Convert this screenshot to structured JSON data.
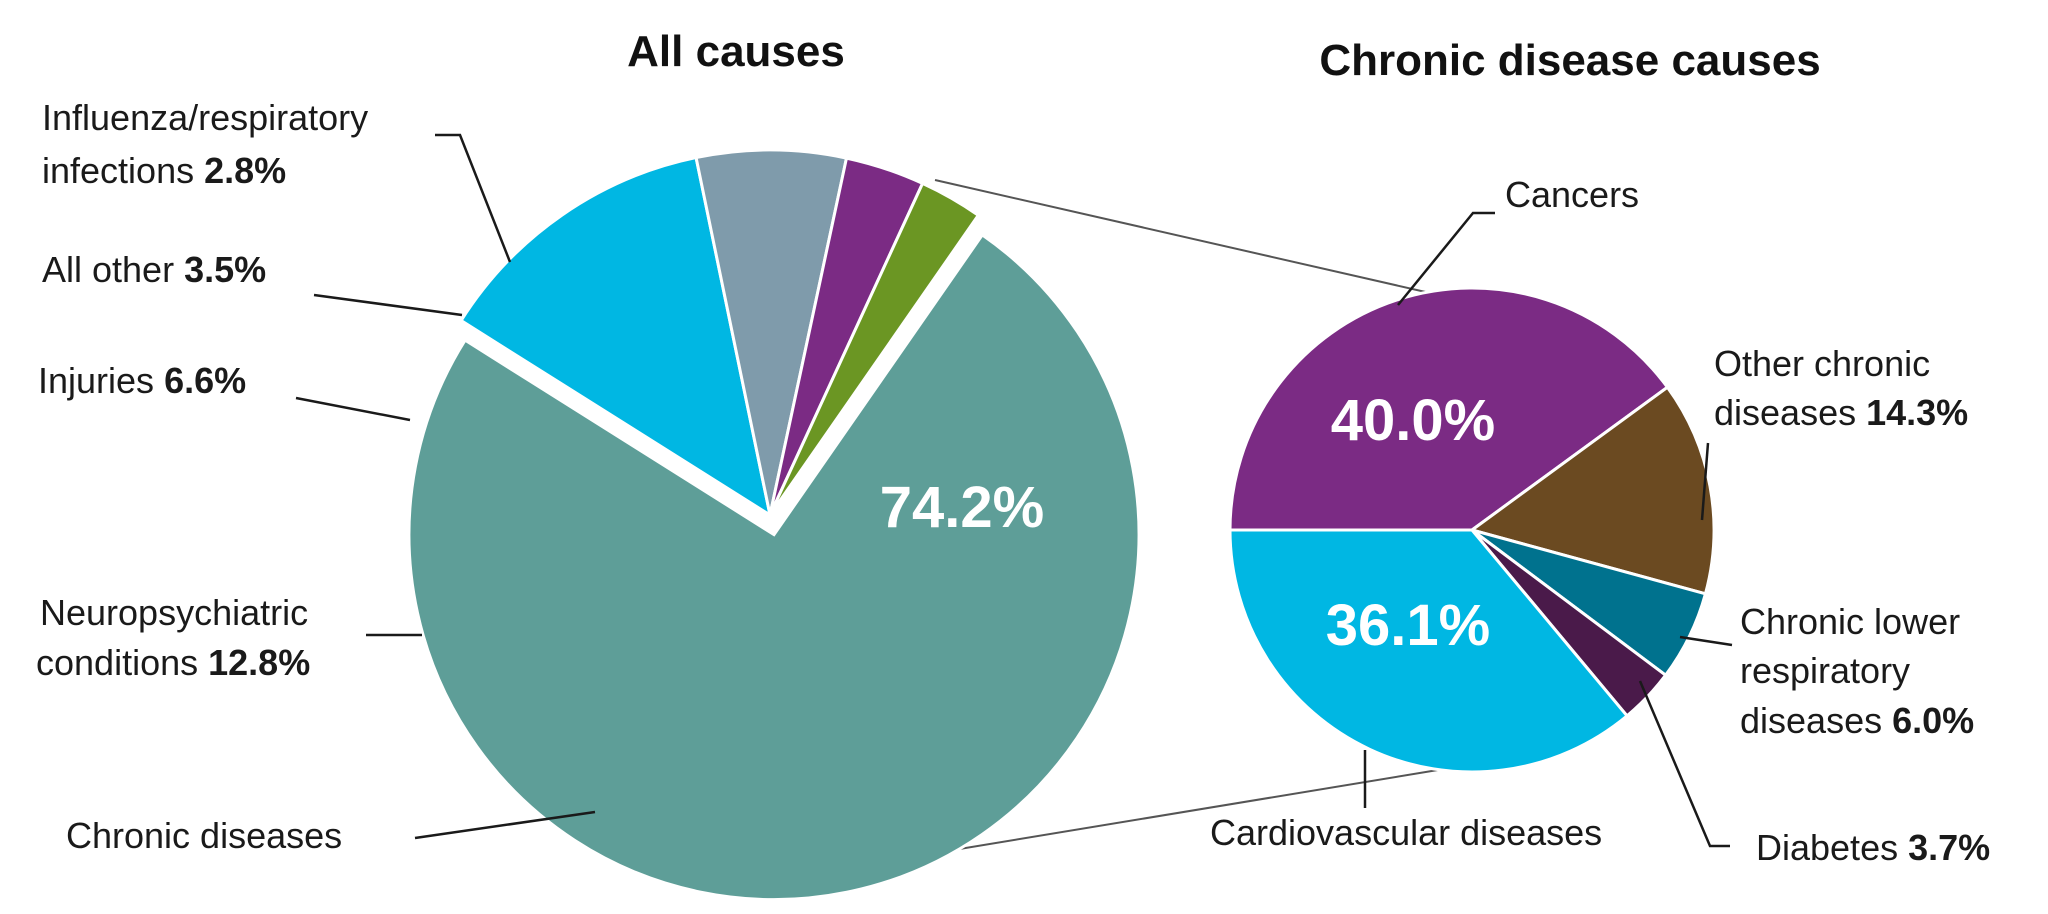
{
  "chart_data": [
    {
      "type": "pie",
      "title": "All causes",
      "slices": [
        {
          "label": "Chronic diseases",
          "value": 74.2,
          "color": "#5e9e98",
          "value_text": "74.2%"
        },
        {
          "label": "Neuropsychiatric conditions",
          "value": 12.8,
          "color": "#00b7e3",
          "value_text": "12.8%"
        },
        {
          "label": "Injuries",
          "value": 6.6,
          "color": "#7f9bab",
          "value_text": "6.6%"
        },
        {
          "label": "All other",
          "value": 3.5,
          "color": "#7b2b84",
          "value_text": "3.5%"
        },
        {
          "label": "Influenza/respiratory infections",
          "value": 2.8,
          "color": "#6b9623",
          "value_text": "2.8%"
        }
      ],
      "labels": {
        "influenza_line1": "Influenza/respiratory",
        "influenza_line2": "infections",
        "influenza_pct": "2.8%",
        "all_other": "All other",
        "all_other_pct": "3.5%",
        "injuries": "Injuries",
        "injuries_pct": "6.6%",
        "neuro_line1": "Neuropsychiatric",
        "neuro_line2": "conditions",
        "neuro_pct": "12.8%",
        "chronic": "Chronic diseases",
        "chronic_pct": "74.2%"
      }
    },
    {
      "type": "pie",
      "title": "Chronic disease causes",
      "slices": [
        {
          "label": "Cancers",
          "value": 40.0,
          "color": "#7b2b84",
          "value_text": "40.0%"
        },
        {
          "label": "Other chronic diseases",
          "value": 14.3,
          "color": "#6b4a21",
          "value_text": "14.3%"
        },
        {
          "label": "Chronic lower respiratory diseases",
          "value": 6.0,
          "color": "#00728e",
          "value_text": "6.0%"
        },
        {
          "label": "Diabetes",
          "value": 3.7,
          "color": "#4a1a4a",
          "value_text": "3.7%"
        },
        {
          "label": "Cardiovascular diseases",
          "value": 36.1,
          "color": "#00b7e3",
          "value_text": "36.1%"
        }
      ],
      "labels": {
        "cancers": "Cancers",
        "cancers_pct": "40.0%",
        "other_line1": "Other chronic",
        "other_line2": "diseases",
        "other_pct": "14.3%",
        "clrd_line1": "Chronic lower",
        "clrd_line2": "respiratory",
        "clrd_line3": "diseases",
        "clrd_pct": "6.0%",
        "diabetes": "Diabetes",
        "diabetes_pct": "3.7%",
        "cardio": "Cardiovascular diseases",
        "cardio_pct": "36.1%"
      }
    }
  ]
}
